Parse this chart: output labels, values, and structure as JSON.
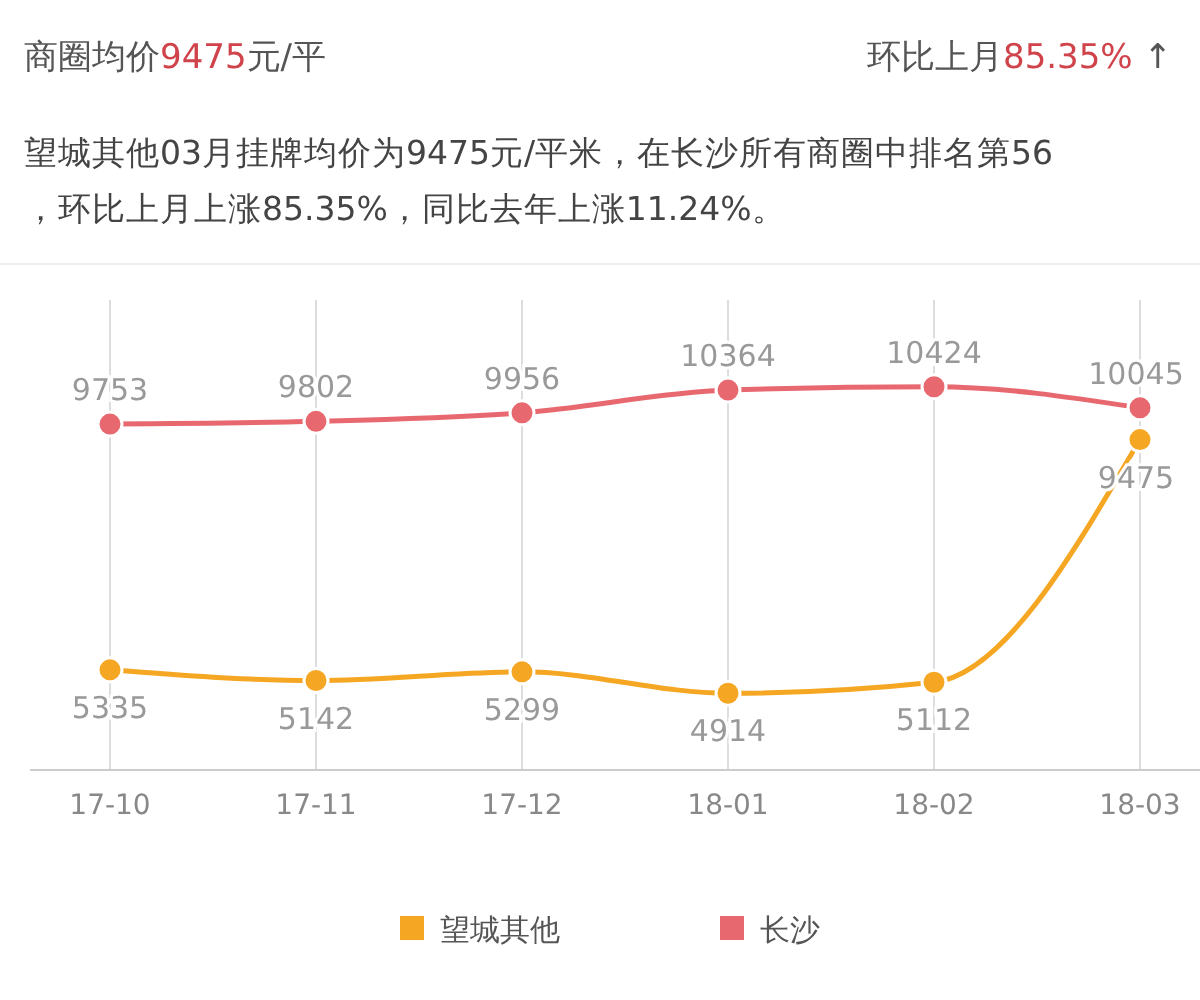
{
  "chart_data": {
    "type": "line",
    "title": "商圈均价9475元/平",
    "subtitle": "环比上月85.35% ↑",
    "annotations": [
      "望城其他03月挂牌均价为9475元/平米，在长沙所有商圈中排名第56，环比上月上涨85.35%，同比去年上涨11.24%。"
    ],
    "categories": [
      "17-10",
      "17-11",
      "17-12",
      "18-01",
      "18-02",
      "18-03"
    ],
    "series": [
      {
        "name": "望城其他",
        "color": "#f5a623",
        "values": [
          5335,
          5142,
          5299,
          4914,
          5112,
          9475
        ]
      },
      {
        "name": "长沙",
        "color": "#e8686f",
        "values": [
          9753,
          9802,
          9956,
          10364,
          10424,
          10045
        ]
      }
    ],
    "data_labels": true,
    "grid": "x",
    "legend": "bottom",
    "marker": "circle",
    "line_style": "solid"
  }
}
